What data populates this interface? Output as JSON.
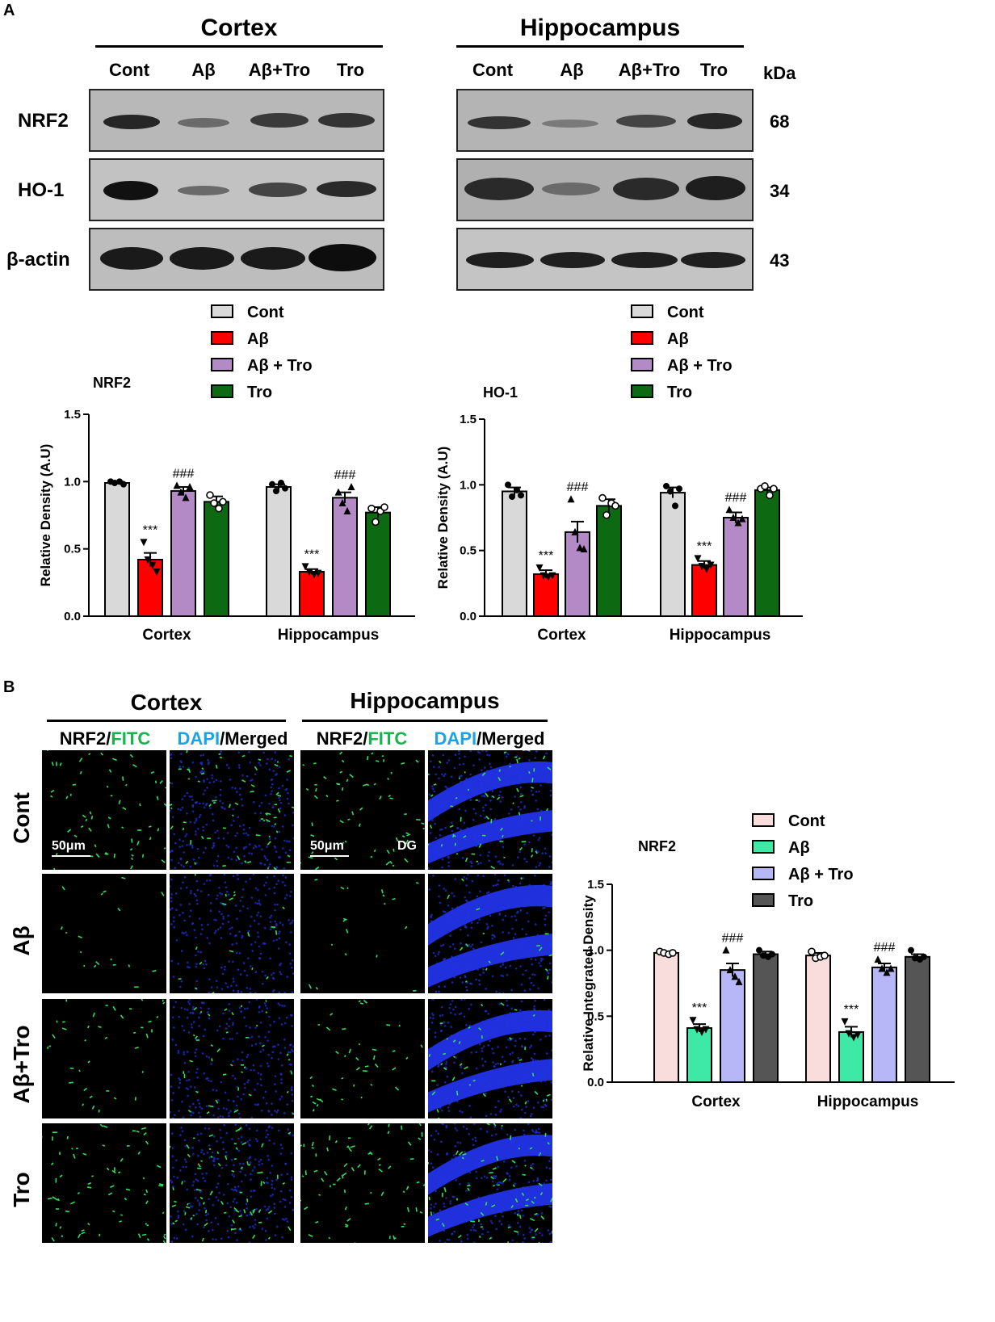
{
  "panel_a": {
    "letter": "A",
    "regions": [
      "Cortex",
      "Hippocampus"
    ],
    "lanes": [
      "Cont",
      "Aβ",
      "Aβ+Tro",
      "Tro"
    ],
    "kda_header": "kDa",
    "rows": [
      {
        "label": "NRF2",
        "kda": "68"
      },
      {
        "label": "HO-1",
        "kda": "34"
      },
      {
        "label": "β-actin",
        "kda": "43"
      }
    ]
  },
  "panel_b": {
    "letter": "B",
    "regions": [
      "Cortex",
      "Hippocampus"
    ],
    "col_heads": {
      "nrf2": "NRF2/",
      "fitc": "FITC",
      "dapi": "DAPI",
      "merged": "/Merged"
    },
    "rows": [
      "Cont",
      "Aβ",
      "Aβ+Tro",
      "Tro"
    ],
    "scale_label": "50μm",
    "dg_label": "DG"
  },
  "colors": {
    "cont_a": "#d9d9d9",
    "abeta_a": "#ff0000",
    "abtro_a": "#b48ac6",
    "tro_a": "#0e6a12",
    "cont_b": "#f9dcdc",
    "abeta_b": "#3ee8a7",
    "abtro_b": "#b7b7f7",
    "tro_b": "#555555",
    "fitc_text": "#19b34b",
    "dapi_text": "#1aa3e8"
  },
  "chart_data": [
    {
      "type": "bar",
      "title": "NRF2",
      "ylabel": "Relative Density (A.U)",
      "xlabel": "",
      "ylim": [
        0,
        1.5
      ],
      "yticks": [
        "0.0",
        "0.5",
        "1.0",
        "1.5"
      ],
      "categories": [
        "Cortex",
        "Hippocampus"
      ],
      "legend_position": "top",
      "series": [
        {
          "name": "Cont",
          "values": [
            0.99,
            0.96
          ],
          "errors": [
            0.01,
            0.02
          ],
          "points": [
            [
              1.0,
              0.99,
              1.0,
              0.98
            ],
            [
              0.98,
              0.93,
              0.99,
              0.95
            ]
          ],
          "marker": "circle-filled",
          "annotations": [
            "",
            ""
          ]
        },
        {
          "name": "Aβ",
          "values": [
            0.42,
            0.33
          ],
          "errors": [
            0.05,
            0.02
          ],
          "points": [
            [
              0.55,
              0.42,
              0.38,
              0.33
            ],
            [
              0.37,
              0.33,
              0.31,
              0.32
            ]
          ],
          "marker": "triangle-down",
          "annotations": [
            "***",
            "***"
          ]
        },
        {
          "name": "Aβ + Tro",
          "values": [
            0.93,
            0.88
          ],
          "errors": [
            0.03,
            0.04
          ],
          "points": [
            [
              0.97,
              0.92,
              0.88,
              0.96
            ],
            [
              0.92,
              0.84,
              0.78,
              0.96
            ]
          ],
          "marker": "triangle-up",
          "annotations": [
            "###",
            "###"
          ]
        },
        {
          "name": "Tro",
          "values": [
            0.85,
            0.77
          ],
          "errors": [
            0.04,
            0.04
          ],
          "points": [
            [
              0.9,
              0.84,
              0.8,
              0.85
            ],
            [
              0.8,
              0.7,
              0.78,
              0.81
            ]
          ],
          "marker": "circle-open",
          "annotations": [
            "",
            ""
          ]
        }
      ]
    },
    {
      "type": "bar",
      "title": "HO-1",
      "ylabel": "Relative Density (A.U)",
      "xlabel": "",
      "ylim": [
        0,
        1.5
      ],
      "yticks": [
        "0.0",
        "0.5",
        "1.0",
        "1.5"
      ],
      "categories": [
        "Cortex",
        "Hippocampus"
      ],
      "legend_position": "top",
      "series": [
        {
          "name": "Cont",
          "values": [
            0.95,
            0.94
          ],
          "errors": [
            0.03,
            0.04
          ],
          "points": [
            [
              1.0,
              0.91,
              0.96,
              0.92
            ],
            [
              0.99,
              0.95,
              0.84,
              0.97
            ]
          ],
          "marker": "circle-filled",
          "annotations": [
            "",
            ""
          ]
        },
        {
          "name": "Aβ",
          "values": [
            0.32,
            0.39
          ],
          "errors": [
            0.03,
            0.03
          ],
          "points": [
            [
              0.37,
              0.31,
              0.3,
              0.31
            ],
            [
              0.44,
              0.38,
              0.36,
              0.39
            ]
          ],
          "marker": "triangle-down",
          "annotations": [
            "***",
            "***"
          ]
        },
        {
          "name": "Aβ + Tro",
          "values": [
            0.64,
            0.75
          ],
          "errors": [
            0.08,
            0.04
          ],
          "points": [
            [
              0.89,
              0.64,
              0.52,
              0.51
            ],
            [
              0.81,
              0.75,
              0.71,
              0.74
            ]
          ],
          "marker": "triangle-up",
          "annotations": [
            "###",
            "###"
          ]
        },
        {
          "name": "Tro",
          "values": [
            0.84,
            0.96
          ],
          "errors": [
            0.05,
            0.02
          ],
          "points": [
            [
              0.9,
              0.77,
              0.86,
              0.84
            ],
            [
              0.97,
              0.99,
              0.92,
              0.97
            ]
          ],
          "marker": "circle-open",
          "annotations": [
            "",
            ""
          ]
        }
      ]
    },
    {
      "type": "bar",
      "title": "NRF2",
      "ylabel": "Relative Integrated Density",
      "xlabel": "",
      "ylim": [
        0,
        1.5
      ],
      "yticks": [
        "0.0",
        "0.5",
        "1.0",
        "1.5"
      ],
      "categories": [
        "Cortex",
        "Hippocampus"
      ],
      "legend_position": "top",
      "series": [
        {
          "name": "Cont",
          "values": [
            0.98,
            0.96
          ],
          "errors": [
            0.01,
            0.02
          ],
          "points": [
            [
              0.99,
              0.98,
              0.97,
              0.98
            ],
            [
              0.99,
              0.94,
              0.95,
              0.96
            ]
          ],
          "marker": "circle-open",
          "annotations": [
            "",
            ""
          ]
        },
        {
          "name": "Aβ",
          "values": [
            0.41,
            0.38
          ],
          "errors": [
            0.03,
            0.04
          ],
          "points": [
            [
              0.47,
              0.4,
              0.38,
              0.4
            ],
            [
              0.46,
              0.37,
              0.34,
              0.36
            ]
          ],
          "marker": "triangle-down",
          "annotations": [
            "***",
            "***"
          ]
        },
        {
          "name": "Aβ + Tro",
          "values": [
            0.85,
            0.87
          ],
          "errors": [
            0.05,
            0.03
          ],
          "points": [
            [
              1.0,
              0.85,
              0.8,
              0.76
            ],
            [
              0.93,
              0.86,
              0.83,
              0.86
            ]
          ],
          "marker": "triangle-up",
          "annotations": [
            "###",
            "###"
          ]
        },
        {
          "name": "Tro",
          "values": [
            0.97,
            0.95
          ],
          "errors": [
            0.02,
            0.02
          ],
          "points": [
            [
              1.0,
              0.96,
              0.95,
              0.97
            ],
            [
              1.0,
              0.94,
              0.93,
              0.95
            ]
          ],
          "marker": "circle-filled",
          "annotations": [
            "",
            ""
          ]
        }
      ]
    }
  ]
}
